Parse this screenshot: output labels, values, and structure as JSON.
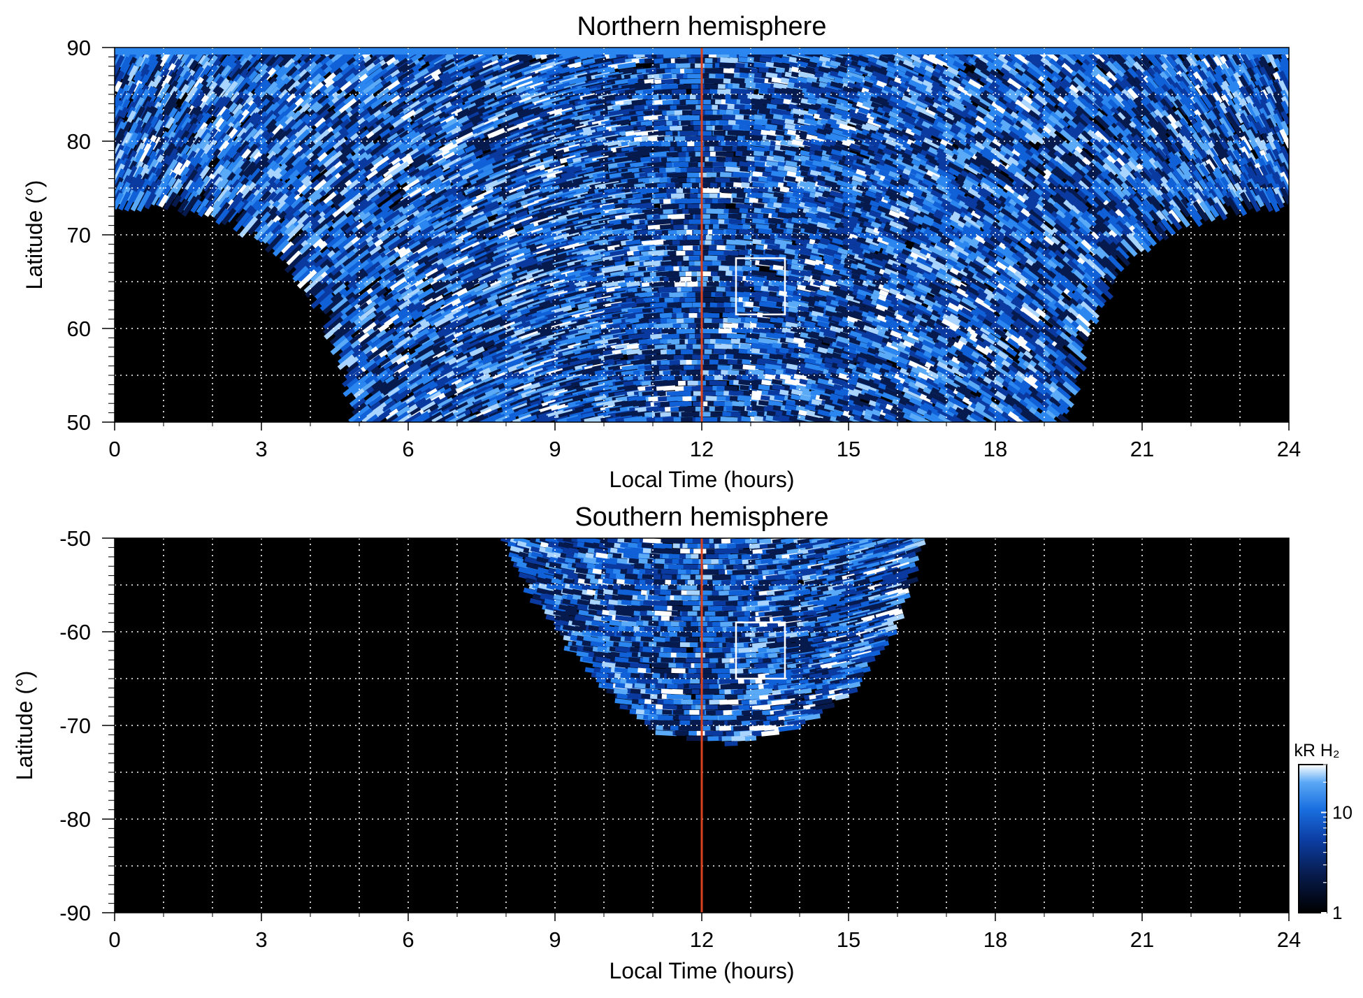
{
  "chart_data": [
    {
      "type": "heatmap",
      "title": "Northern hemisphere",
      "xlabel": "Local Time (hours)",
      "ylabel": "Latitude (°)",
      "xlim": [
        0,
        24
      ],
      "ylim": [
        50,
        90
      ],
      "x_ticks": [
        "0",
        "3",
        "6",
        "9",
        "12",
        "15",
        "18",
        "21",
        "24"
      ],
      "y_ticks": [
        "90",
        "80",
        "70",
        "60",
        "50"
      ],
      "y_tick_values": [
        90,
        80,
        70,
        60,
        50
      ],
      "x_tick_values": [
        0,
        3,
        6,
        9,
        12,
        15,
        18,
        21,
        24
      ],
      "grid": true,
      "grid_x_step": 1,
      "grid_y_step": 5,
      "noon_line_x": 12,
      "noon_line_color": "#d9421c",
      "highlight_box": {
        "x": [
          12.7,
          13.7
        ],
        "y": [
          61.5,
          67.5
        ]
      },
      "coverage_boundary": [
        [
          0,
          73.5
        ],
        [
          1,
          73.5
        ],
        [
          2.5,
          71.5
        ],
        [
          3.5,
          68
        ],
        [
          4.3,
          62
        ],
        [
          4.8,
          55
        ],
        [
          5,
          50
        ],
        [
          19.4,
          50
        ],
        [
          19.6,
          55
        ],
        [
          20,
          62
        ],
        [
          20.7,
          68
        ],
        [
          21.8,
          71.5
        ],
        [
          23,
          73
        ],
        [
          24,
          73.5
        ]
      ]
    },
    {
      "type": "heatmap",
      "title": "Southern hemisphere",
      "xlabel": "Local Time (hours)",
      "ylabel": "Latitude (°)",
      "xlim": [
        0,
        24
      ],
      "ylim": [
        -90,
        -50
      ],
      "x_ticks": [
        "0",
        "3",
        "6",
        "9",
        "12",
        "15",
        "18",
        "21",
        "24"
      ],
      "y_ticks": [
        "-50",
        "-60",
        "-70",
        "-80",
        "-90"
      ],
      "y_tick_values": [
        -50,
        -60,
        -70,
        -80,
        -90
      ],
      "x_tick_values": [
        0,
        3,
        6,
        9,
        12,
        15,
        18,
        21,
        24
      ],
      "grid": true,
      "grid_x_step": 1,
      "grid_y_step": 5,
      "noon_line_x": 12,
      "noon_line_color": "#d9421c",
      "highlight_box": {
        "x": [
          12.7,
          13.7
        ],
        "y": [
          -59,
          -65
        ]
      },
      "coverage_boundary": [
        [
          8,
          -50
        ],
        [
          8.6,
          -56
        ],
        [
          9.4,
          -62
        ],
        [
          10.3,
          -67.5
        ],
        [
          11.3,
          -71
        ],
        [
          12.6,
          -72
        ],
        [
          13.8,
          -70.5
        ],
        [
          15,
          -66.5
        ],
        [
          15.8,
          -60.5
        ],
        [
          16.2,
          -55
        ],
        [
          16.4,
          -50
        ]
      ]
    }
  ],
  "colorbar": {
    "label": "kR H₂",
    "tick_labels": [
      "10",
      "1"
    ],
    "tick_values": [
      10,
      1
    ],
    "range": [
      1,
      30
    ],
    "scale": "log",
    "colors": [
      "#000000",
      "#071a4a",
      "#0c3fa6",
      "#1a6fe0",
      "#5aa8f5",
      "#ffffff"
    ]
  }
}
